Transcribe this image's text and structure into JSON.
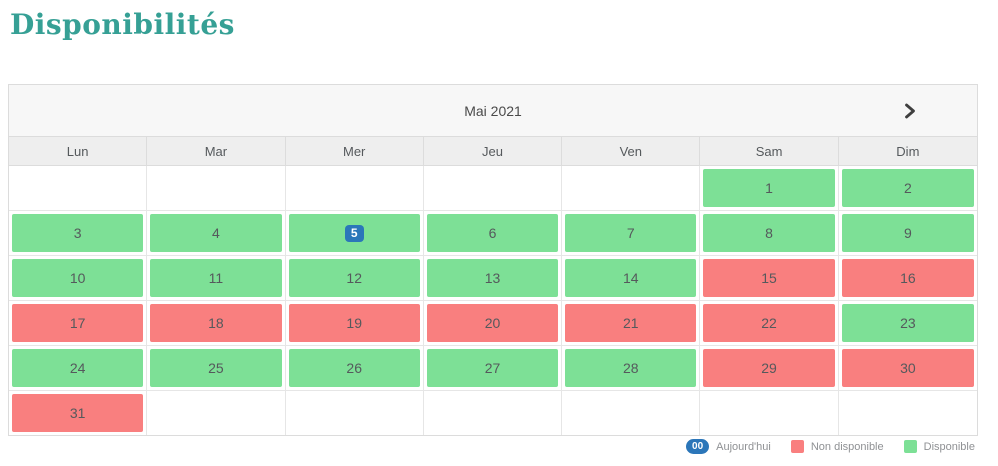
{
  "page": {
    "title": "Disponibilités"
  },
  "colors": {
    "title": "#36a095",
    "available": "#7de096",
    "unavailable": "#f97f7f",
    "today_badge": "#2b76b9",
    "header_bg": "#f7f7f7",
    "weekday_bg": "#eeeeee",
    "border": "#dcdcdc",
    "day_text": "#55595c",
    "legend_text": "#8f9194"
  },
  "calendar": {
    "month_label": "Mai 2021",
    "next_button_icon": "chevron-right-icon",
    "weekdays": [
      "Lun",
      "Mar",
      "Mer",
      "Jeu",
      "Ven",
      "Sam",
      "Dim"
    ],
    "weeks": [
      [
        null,
        null,
        null,
        null,
        null,
        {
          "day": 1,
          "status": "available"
        },
        {
          "day": 2,
          "status": "available"
        }
      ],
      [
        {
          "day": 3,
          "status": "available"
        },
        {
          "day": 4,
          "status": "available"
        },
        {
          "day": 5,
          "status": "available",
          "today": true
        },
        {
          "day": 6,
          "status": "available"
        },
        {
          "day": 7,
          "status": "available"
        },
        {
          "day": 8,
          "status": "available"
        },
        {
          "day": 9,
          "status": "available"
        }
      ],
      [
        {
          "day": 10,
          "status": "available"
        },
        {
          "day": 11,
          "status": "available"
        },
        {
          "day": 12,
          "status": "available"
        },
        {
          "day": 13,
          "status": "available"
        },
        {
          "day": 14,
          "status": "available"
        },
        {
          "day": 15,
          "status": "unavailable"
        },
        {
          "day": 16,
          "status": "unavailable"
        }
      ],
      [
        {
          "day": 17,
          "status": "unavailable"
        },
        {
          "day": 18,
          "status": "unavailable"
        },
        {
          "day": 19,
          "status": "unavailable"
        },
        {
          "day": 20,
          "status": "unavailable"
        },
        {
          "day": 21,
          "status": "unavailable"
        },
        {
          "day": 22,
          "status": "unavailable"
        },
        {
          "day": 23,
          "status": "available"
        }
      ],
      [
        {
          "day": 24,
          "status": "available"
        },
        {
          "day": 25,
          "status": "available"
        },
        {
          "day": 26,
          "status": "available"
        },
        {
          "day": 27,
          "status": "available"
        },
        {
          "day": 28,
          "status": "available"
        },
        {
          "day": 29,
          "status": "unavailable"
        },
        {
          "day": 30,
          "status": "unavailable"
        }
      ],
      [
        {
          "day": 31,
          "status": "unavailable"
        },
        null,
        null,
        null,
        null,
        null,
        null
      ]
    ]
  },
  "legend": {
    "today": {
      "badge": "00",
      "label": "Aujourd'hui"
    },
    "unavailable": {
      "label": "Non disponible"
    },
    "available": {
      "label": "Disponible"
    }
  }
}
